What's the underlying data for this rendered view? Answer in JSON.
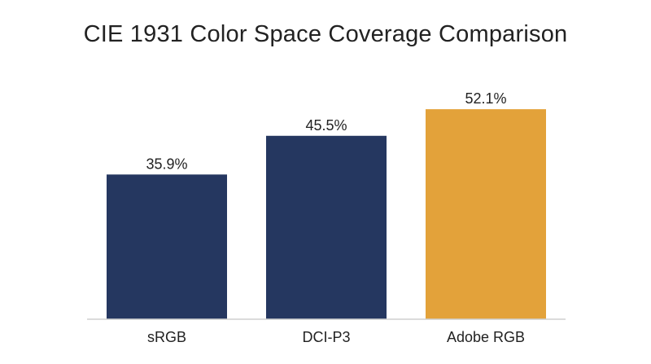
{
  "chart_data": {
    "type": "bar",
    "title": "CIE 1931 Color Space Coverage Comparison",
    "xlabel": "",
    "ylabel": "",
    "categories": [
      "sRGB",
      "DCI-P3",
      "Adobe RGB"
    ],
    "values": [
      35.9,
      45.5,
      52.1
    ],
    "data_labels": [
      "35.9%",
      "45.5%",
      "52.1%"
    ],
    "colors": [
      "#253760",
      "#253760",
      "#E3A23A"
    ],
    "ylim": [
      0,
      60
    ],
    "grid": false,
    "legend": "none"
  }
}
